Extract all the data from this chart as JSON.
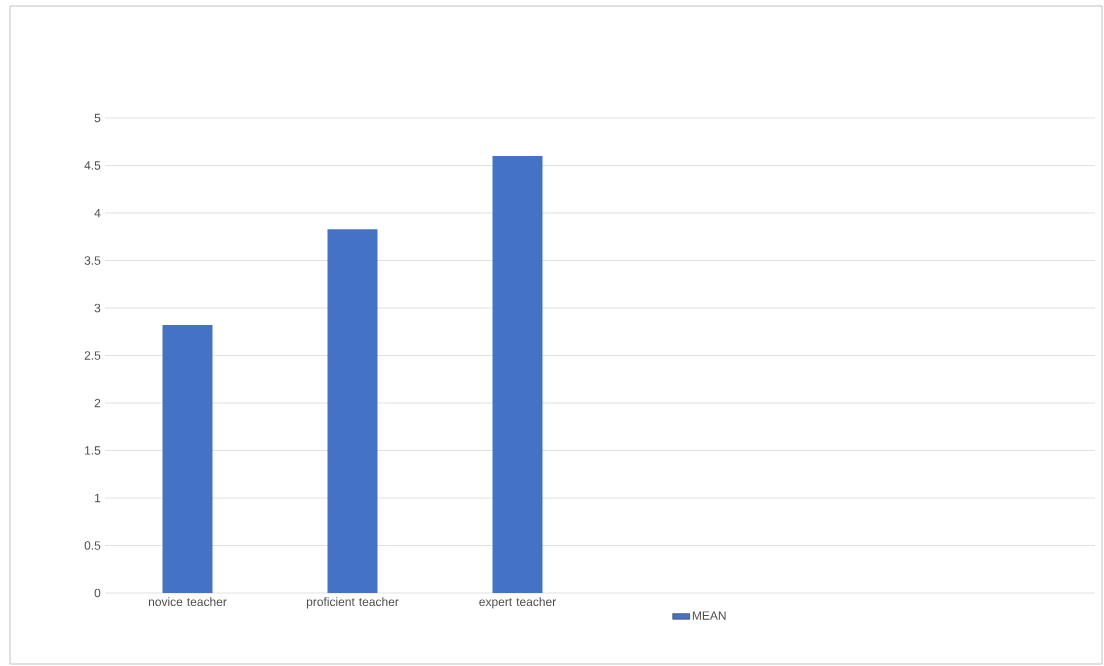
{
  "chart_data": {
    "type": "bar",
    "categories": [
      "novice teacher",
      "proficient teacher",
      "expert teacher",
      null,
      null,
      null
    ],
    "series": [
      {
        "name": "MEAN",
        "color": "#4472c4",
        "values": [
          2.82,
          3.83,
          4.6,
          null,
          null,
          null
        ]
      }
    ],
    "ylim": [
      0,
      5
    ],
    "yticks": [
      0,
      0.5,
      1,
      1.5,
      2,
      2.5,
      3,
      3.5,
      4,
      4.5,
      5
    ],
    "grid": "y",
    "legend": "bottom"
  }
}
